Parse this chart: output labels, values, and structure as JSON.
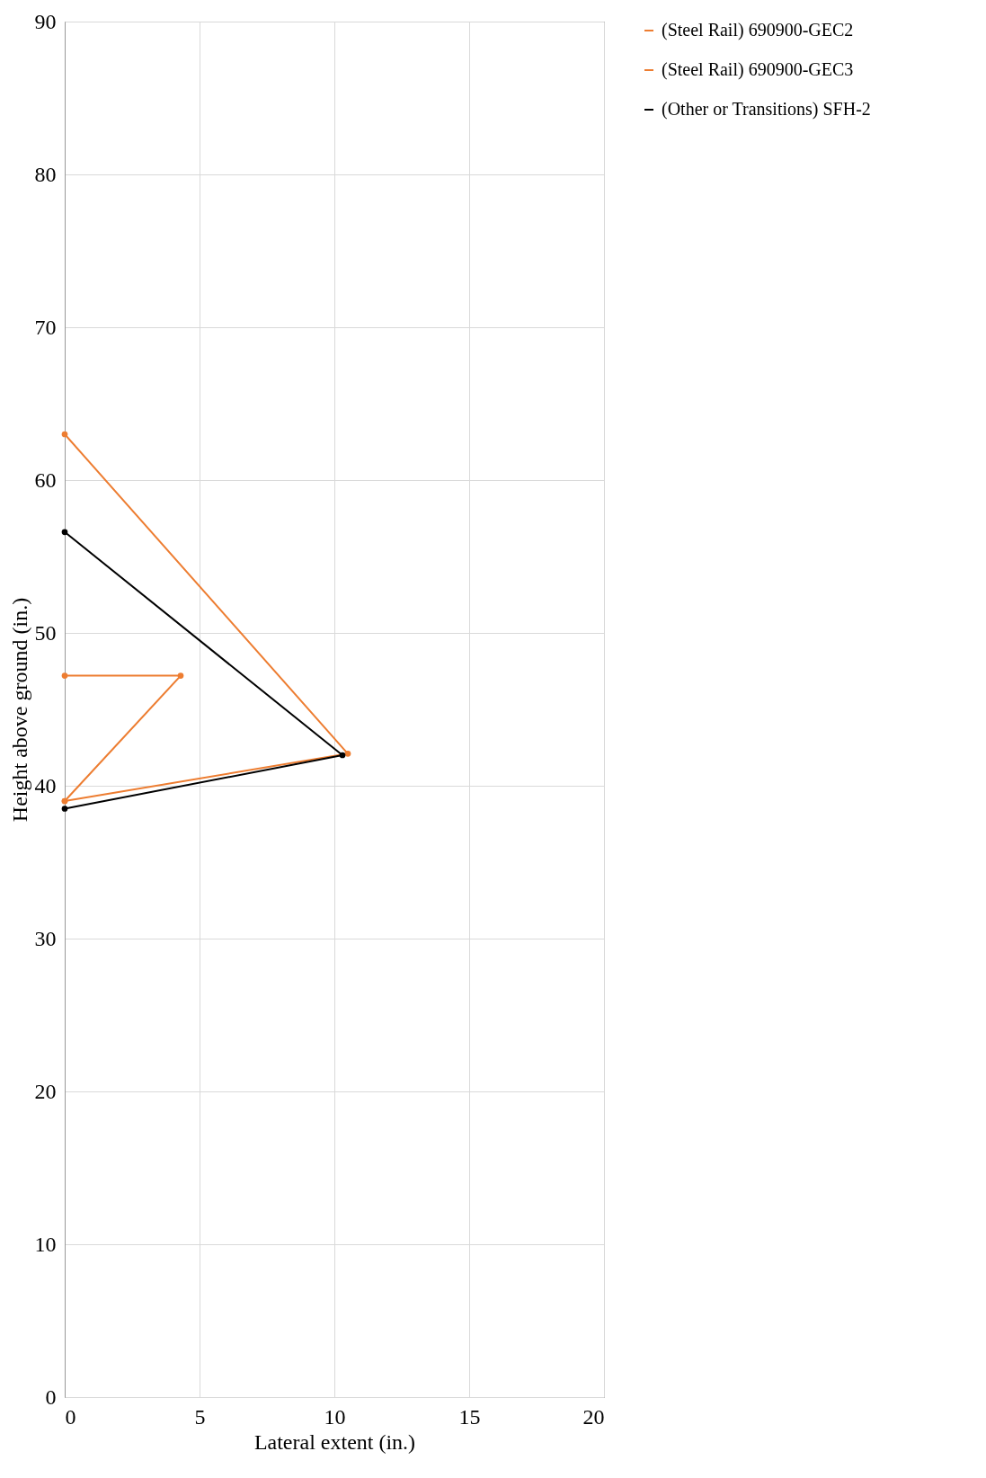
{
  "chart_data": {
    "type": "line",
    "xlabel": "Lateral extent (in.)",
    "ylabel": "Height above ground (in.)",
    "xlim": [
      0,
      20
    ],
    "xticks": [
      0,
      5,
      10,
      15,
      20
    ],
    "ylim": [
      0,
      90
    ],
    "yticks": [
      0,
      10,
      20,
      30,
      40,
      50,
      60,
      70,
      80,
      90
    ],
    "grid": true,
    "legend": "top right",
    "marker": "circle",
    "line_style": "solid",
    "series": [
      {
        "name": "(Steel Rail) 690900-GEC2",
        "color": "#ed7d31",
        "x": [
          0,
          10.5,
          0
        ],
        "values": [
          39,
          42.1,
          63
        ]
      },
      {
        "name": "(Steel Rail) 690900-GEC3",
        "color": "#ed7d31",
        "x": [
          0,
          4.3,
          0
        ],
        "values": [
          39,
          47.2,
          47.2
        ]
      },
      {
        "name": "(Other or Transitions) SFH-2",
        "color": "#000000",
        "x": [
          0,
          10.3,
          0
        ],
        "values": [
          38.5,
          42,
          56.6
        ]
      }
    ]
  }
}
